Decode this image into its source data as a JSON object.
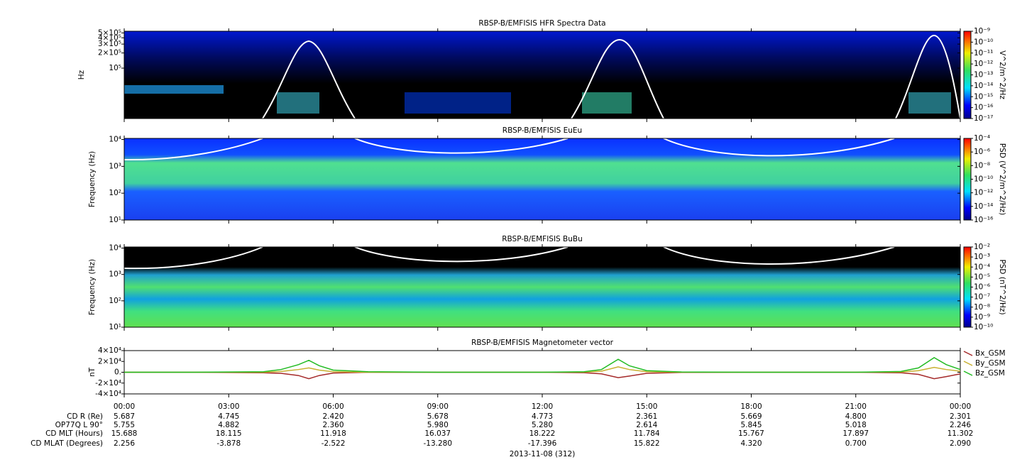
{
  "chart_data": [
    {
      "type": "spectrogram",
      "title": "RBSP-B/EMFISIS  HFR Spectra Data",
      "ylabel": "Hz",
      "log_y": true,
      "ylim": [
        10000,
        540000
      ],
      "yticks": [
        {
          "value": 500000,
          "label": "5×10⁵"
        },
        {
          "value": 400000,
          "label": "4×10⁵"
        },
        {
          "value": 300000,
          "label": "3×10⁵"
        },
        {
          "value": 200000,
          "label": "2×10⁵"
        },
        {
          "value": 100000,
          "label": "10⁵"
        }
      ],
      "colorbar": {
        "label": "V^2/m^2/Hz",
        "lim": [
          1e-17,
          1e-09
        ],
        "ticks": [
          {
            "value": 1e-09,
            "label": "10⁻⁹"
          },
          {
            "value": 1e-10,
            "label": "10⁻¹⁰"
          },
          {
            "value": 1e-11,
            "label": "10⁻¹¹"
          },
          {
            "value": 1e-12,
            "label": "10⁻¹²"
          },
          {
            "value": 1e-13,
            "label": "10⁻¹³"
          },
          {
            "value": 1e-14,
            "label": "10⁻¹⁴"
          },
          {
            "value": 1e-15,
            "label": "10⁻¹⁵"
          },
          {
            "value": 1e-16,
            "label": "10⁻¹⁶"
          },
          {
            "value": 1e-17,
            "label": "10⁻¹⁷"
          }
        ]
      }
    },
    {
      "type": "spectrogram",
      "title": "RBSP-B/EMFISIS  EuEu",
      "ylabel": "Frequency (Hz)",
      "log_y": true,
      "ylim": [
        10,
        11000
      ],
      "yticks": [
        {
          "value": 10000,
          "label": "10⁴"
        },
        {
          "value": 1000,
          "label": "10³"
        },
        {
          "value": 100,
          "label": "10²"
        },
        {
          "value": 10,
          "label": "10¹"
        }
      ],
      "colorbar": {
        "label": "PSD (V^2/m^2/Hz)",
        "lim": [
          1e-16,
          0.0001
        ],
        "ticks": [
          {
            "value": 0.0001,
            "label": "10⁻⁴"
          },
          {
            "value": 1e-06,
            "label": "10⁻⁶"
          },
          {
            "value": 1e-08,
            "label": "10⁻⁸"
          },
          {
            "value": 1e-10,
            "label": "10⁻¹⁰"
          },
          {
            "value": 1e-12,
            "label": "10⁻¹²"
          },
          {
            "value": 1e-14,
            "label": "10⁻¹⁴"
          },
          {
            "value": 1e-16,
            "label": "10⁻¹⁶"
          }
        ]
      }
    },
    {
      "type": "spectrogram",
      "title": "RBSP-B/EMFISIS  BuBu",
      "ylabel": "Frequency (Hz)",
      "log_y": true,
      "ylim": [
        10,
        11000
      ],
      "yticks": [
        {
          "value": 10000,
          "label": "10⁴"
        },
        {
          "value": 1000,
          "label": "10³"
        },
        {
          "value": 100,
          "label": "10²"
        },
        {
          "value": 10,
          "label": "10¹"
        }
      ],
      "colorbar": {
        "label": "PSD (nT^2/Hz)",
        "lim": [
          1e-10,
          0.01
        ],
        "ticks": [
          {
            "value": 0.01,
            "label": "10⁻²"
          },
          {
            "value": 0.001,
            "label": "10⁻³"
          },
          {
            "value": 0.0001,
            "label": "10⁻⁴"
          },
          {
            "value": 1e-05,
            "label": "10⁻⁵"
          },
          {
            "value": 1e-06,
            "label": "10⁻⁶"
          },
          {
            "value": 1e-07,
            "label": "10⁻⁷"
          },
          {
            "value": 1e-08,
            "label": "10⁻⁸"
          },
          {
            "value": 1e-09,
            "label": "10⁻⁹"
          },
          {
            "value": 1e-10,
            "label": "10⁻¹⁰"
          }
        ]
      }
    },
    {
      "type": "line",
      "title": "RBSP-B/EMFISIS  Magnetometer vector",
      "ylabel": "nT",
      "ylim": [
        -40000,
        40000
      ],
      "yticks": [
        {
          "value": 40000,
          "label": "4×10⁴"
        },
        {
          "value": 20000,
          "label": "2×10⁴"
        },
        {
          "value": 0,
          "label": "0."
        },
        {
          "value": -20000,
          "label": "-2×10⁴"
        },
        {
          "value": -40000,
          "label": "-4×10⁴"
        }
      ],
      "x": [
        0,
        2,
        4,
        4.5,
        5,
        5.3,
        5.6,
        6,
        7,
        9,
        12,
        13.2,
        13.7,
        14.18,
        14.5,
        15,
        16,
        18,
        21,
        22.3,
        22.8,
        23.25,
        23.6,
        24
      ],
      "series": [
        {
          "name": "Bx_GSM",
          "color": "#a52a2a",
          "values": [
            0,
            0,
            -1000,
            -2000,
            -6000,
            -12000,
            -6000,
            -1500,
            0,
            0,
            0,
            -800,
            -3000,
            -10000,
            -7000,
            -2000,
            -300,
            0,
            0,
            -1000,
            -4000,
            -12000,
            -8000,
            -3000
          ]
        },
        {
          "name": "By_GSM",
          "color": "#c8b030",
          "values": [
            0,
            0,
            0,
            1500,
            5000,
            8000,
            4000,
            1000,
            0,
            0,
            0,
            300,
            2000,
            10000,
            5000,
            1000,
            0,
            0,
            0,
            500,
            3000,
            9000,
            5000,
            2000
          ]
        },
        {
          "name": "Bz_GSM",
          "color": "#22bb22",
          "values": [
            0,
            0,
            1000,
            5000,
            14000,
            22000,
            12000,
            4000,
            1000,
            0,
            0,
            1000,
            5000,
            24000,
            12000,
            3000,
            500,
            0,
            0,
            1500,
            8000,
            27000,
            14000,
            5000
          ]
        }
      ]
    }
  ],
  "x_axis": {
    "xlim": [
      0,
      24
    ],
    "xticks": [
      {
        "value": 0,
        "label": "00:00"
      },
      {
        "value": 3,
        "label": "03:00"
      },
      {
        "value": 6,
        "label": "06:00"
      },
      {
        "value": 9,
        "label": "09:00"
      },
      {
        "value": 12,
        "label": "12:00"
      },
      {
        "value": 15,
        "label": "15:00"
      },
      {
        "value": 18,
        "label": "18:00"
      },
      {
        "value": 21,
        "label": "21:00"
      },
      {
        "value": 24,
        "label": "00:00"
      }
    ]
  },
  "ephemeris": [
    {
      "label": "CD R (Re)",
      "values": [
        "5.687",
        "4.745",
        "2.420",
        "5.678",
        "4.773",
        "2.361",
        "5.669",
        "4.800",
        "2.301"
      ]
    },
    {
      "label": "OP77Q L 90°",
      "values": [
        "5.755",
        "4.882",
        "2.360",
        "5.980",
        "5.280",
        "2.614",
        "5.845",
        "5.018",
        "2.246"
      ]
    },
    {
      "label": "CD MLT (Hours)",
      "values": [
        "15.688",
        "18.115",
        "11.918",
        "16.037",
        "18.222",
        "11.784",
        "15.767",
        "17.897",
        "11.302"
      ]
    },
    {
      "label": "CD MLAT (Degrees)",
      "values": [
        "2.256",
        "-3.878",
        "-2.522",
        "-13.280",
        "-17.396",
        "15.822",
        "4.320",
        "0.700",
        "2.090"
      ]
    }
  ],
  "date": "2013-11-08 (312)"
}
